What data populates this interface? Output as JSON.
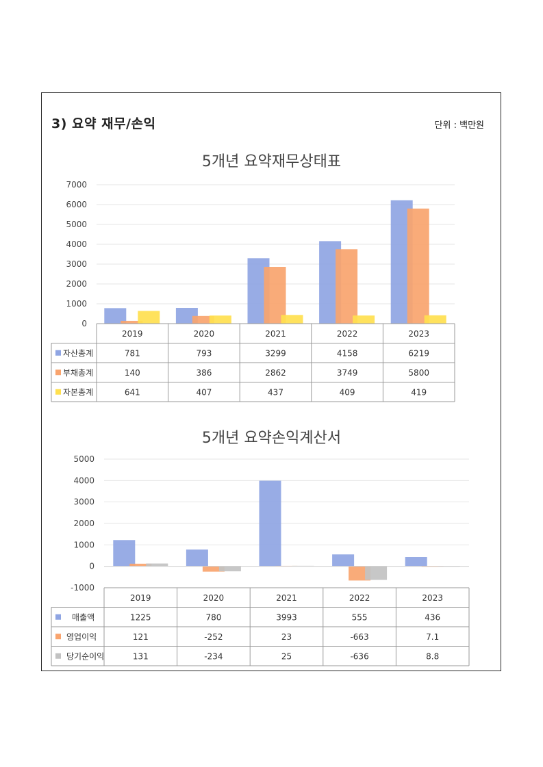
{
  "section_title": "3)  요약  재무/손익",
  "unit": "단위 : 백만원",
  "colors": {
    "blue": "#8FA5E3",
    "orange": "#F9A46E",
    "yellow": "#FFE04F",
    "gray": "#C2C2C2"
  },
  "chart_data": [
    {
      "type": "bar",
      "title": "5개년 요약재무상태표",
      "categories": [
        "2019",
        "2020",
        "2021",
        "2022",
        "2023"
      ],
      "ylim": [
        0,
        7000
      ],
      "yticks": [
        0,
        1000,
        2000,
        3000,
        4000,
        5000,
        6000,
        7000
      ],
      "grid": true,
      "series": [
        {
          "name": "자산총계",
          "color": "#8FA5E3",
          "values": [
            781,
            793,
            3299,
            4158,
            6219
          ],
          "labels": [
            "781",
            "793",
            "3299",
            "4158",
            "6219"
          ]
        },
        {
          "name": "부채총계",
          "color": "#F9A46E",
          "values": [
            140,
            386,
            2862,
            3749,
            5800
          ],
          "labels": [
            "140",
            "386",
            "2862",
            "3749",
            "5800"
          ]
        },
        {
          "name": "자본총계",
          "color": "#FFE04F",
          "values": [
            641,
            407,
            437,
            409,
            419
          ],
          "labels": [
            "641",
            "407",
            "437",
            "409",
            "419"
          ]
        }
      ]
    },
    {
      "type": "bar",
      "title": "5개년 요약손익계산서",
      "categories": [
        "2019",
        "2020",
        "2021",
        "2022",
        "2023"
      ],
      "ylim": [
        -1000,
        5000
      ],
      "yticks": [
        -1000,
        0,
        1000,
        2000,
        3000,
        4000,
        5000
      ],
      "grid": true,
      "series": [
        {
          "name": "매출액",
          "color": "#8FA5E3",
          "values": [
            1225,
            780,
            3993,
            555,
            436
          ],
          "labels": [
            "1225",
            "780",
            "3993",
            "555",
            "436"
          ]
        },
        {
          "name": "영업이익",
          "color": "#F9A46E",
          "values": [
            121,
            -252,
            23,
            -663,
            7.1
          ],
          "labels": [
            "121",
            "-252",
            "23",
            "-663",
            "7.1"
          ]
        },
        {
          "name": "당기순이익",
          "color": "#C2C2C2",
          "values": [
            131,
            -234,
            25,
            -636,
            8.8
          ],
          "labels": [
            "131",
            "-234",
            "25",
            "-636",
            "8.8"
          ]
        }
      ]
    }
  ]
}
